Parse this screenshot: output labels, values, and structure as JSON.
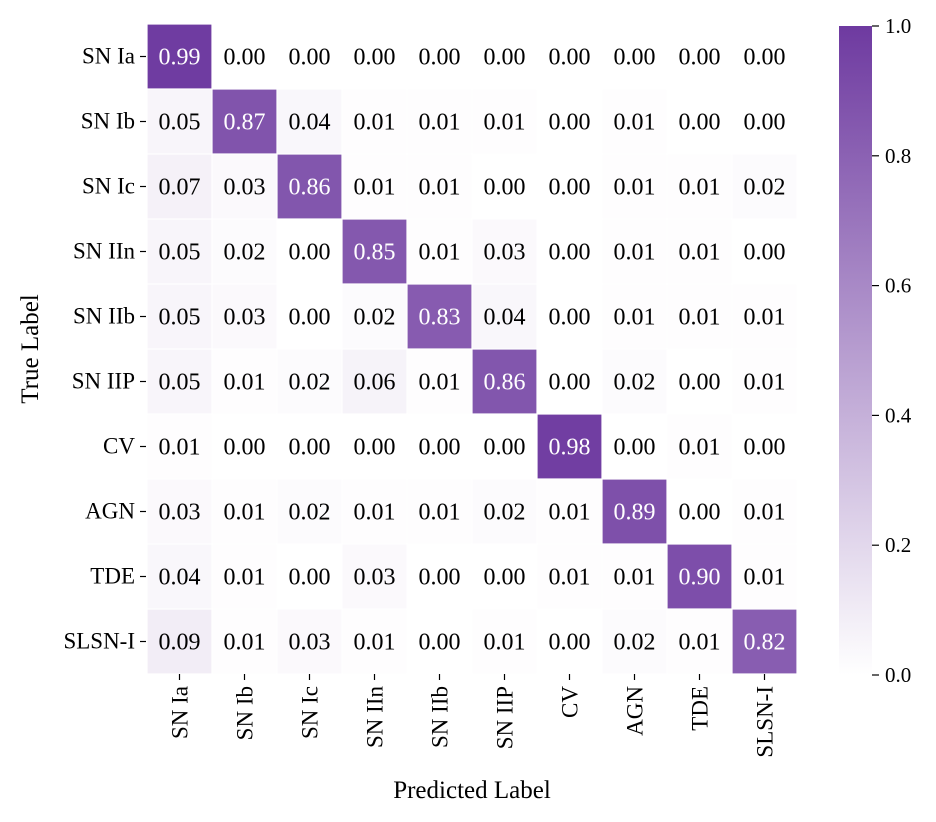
{
  "chart_data": {
    "type": "heatmap",
    "title": "",
    "xlabel": "Predicted Label",
    "ylabel": "True Label",
    "x_categories": [
      "SN Ia",
      "SN Ib",
      "SN Ic",
      "SN IIn",
      "SN IIb",
      "SN IIP",
      "CV",
      "AGN",
      "TDE",
      "SLSN-I"
    ],
    "y_categories": [
      "SN Ia",
      "SN Ib",
      "SN Ic",
      "SN IIn",
      "SN IIb",
      "SN IIP",
      "CV",
      "AGN",
      "TDE",
      "SLSN-I"
    ],
    "matrix": [
      [
        0.99,
        0.0,
        0.0,
        0.0,
        0.0,
        0.0,
        0.0,
        0.0,
        0.0,
        0.0
      ],
      [
        0.05,
        0.87,
        0.04,
        0.01,
        0.01,
        0.01,
        0.0,
        0.01,
        0.0,
        0.0
      ],
      [
        0.07,
        0.03,
        0.86,
        0.01,
        0.01,
        0.0,
        0.0,
        0.01,
        0.01,
        0.02
      ],
      [
        0.05,
        0.02,
        0.0,
        0.85,
        0.01,
        0.03,
        0.0,
        0.01,
        0.01,
        0.0
      ],
      [
        0.05,
        0.03,
        0.0,
        0.02,
        0.83,
        0.04,
        0.0,
        0.01,
        0.01,
        0.01
      ],
      [
        0.05,
        0.01,
        0.02,
        0.06,
        0.01,
        0.86,
        0.0,
        0.02,
        0.0,
        0.01
      ],
      [
        0.01,
        0.0,
        0.0,
        0.0,
        0.0,
        0.0,
        0.98,
        0.0,
        0.01,
        0.0
      ],
      [
        0.03,
        0.01,
        0.02,
        0.01,
        0.01,
        0.02,
        0.01,
        0.89,
        0.0,
        0.01
      ],
      [
        0.04,
        0.01,
        0.0,
        0.03,
        0.0,
        0.0,
        0.01,
        0.01,
        0.9,
        0.01
      ],
      [
        0.09,
        0.01,
        0.03,
        0.01,
        0.0,
        0.01,
        0.0,
        0.02,
        0.01,
        0.82
      ]
    ],
    "value_format": "0.00",
    "colorbar": {
      "range": [
        0.0,
        1.0
      ],
      "ticks": [
        0.0,
        0.2,
        0.4,
        0.6,
        0.8,
        1.0
      ],
      "tick_labels": [
        "0.0",
        "0.2",
        "0.4",
        "0.6",
        "0.8",
        "1.0"
      ],
      "color_low": "#ffffff",
      "color_high": "#6e3aa0"
    },
    "cell_gap_color": "#ffffff",
    "text_color_light": "#ffffff",
    "text_color_dark": "#000000"
  }
}
